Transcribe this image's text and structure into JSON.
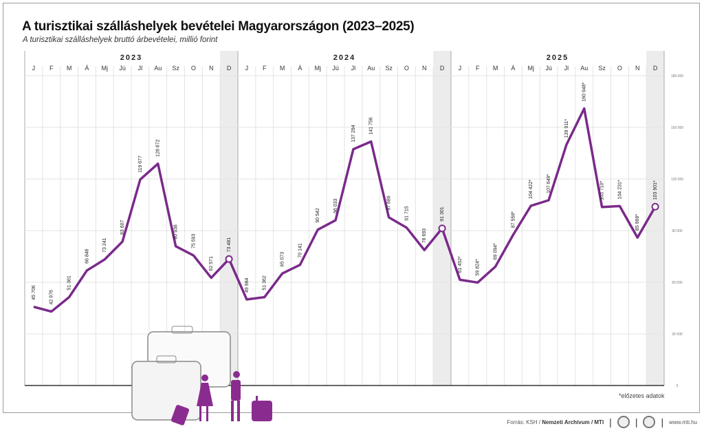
{
  "title": "A turisztikai szálláshelyek bevételei Magyarországon (2023–2025)",
  "subtitle": "A turisztikai szálláshelyek bruttó árbevételei, millió forint",
  "note": "*előzetes adatok",
  "footer": {
    "source_prefix": "Forrás: KSH / ",
    "source_bold": "Nemzeti Archívum / MTI",
    "site": "www.mti.hu"
  },
  "chart_data": {
    "type": "line",
    "title": "A turisztikai szálláshelyek bevételei Magyarországon (2023–2025)",
    "ylabel": "millió forint",
    "ylim": [
      0,
      180000
    ],
    "yticks": [
      0,
      30000,
      60000,
      90000,
      120000,
      150000,
      180000
    ],
    "ytick_labels": [
      "0",
      "30 000",
      "60 000",
      "90 000",
      "120 000",
      "150 000",
      "180 000"
    ],
    "years": [
      "2023",
      "2024",
      "2025"
    ],
    "months": [
      "J",
      "F",
      "M",
      "Á",
      "Mj",
      "Jú",
      "Jl",
      "Au",
      "Sz",
      "O",
      "N",
      "D"
    ],
    "line_color": "#7a2a8a",
    "values": [
      45706,
      42976,
      51361,
      66846,
      73241,
      83607,
      119677,
      128872,
      80938,
      75593,
      62571,
      73481,
      49984,
      51362,
      65073,
      70141,
      90542,
      96033,
      137294,
      141756,
      97689,
      91715,
      78693,
      91301,
      61452,
      59824,
      69094,
      87558,
      104422,
      107649,
      139911,
      160948,
      103710,
      104231,
      85968,
      103901
    ],
    "labels": [
      "45 706",
      "42 976",
      "51 361",
      "66 846",
      "73 241",
      "83 607",
      "119 677",
      "128 872",
      "80 938",
      "75 593",
      "62 571",
      "73 481",
      "49 984",
      "51 362",
      "65 073",
      "70 141",
      "90 542",
      "96 033",
      "137 294",
      "141 756",
      "97 689",
      "91 715",
      "78 693",
      "91 301",
      "61 452*",
      "59 824*",
      "69 094*",
      "87 558*",
      "104 422*",
      "107 649*",
      "139 911*",
      "160 948*",
      "103 710*",
      "104 231*",
      "85 968*",
      "103 901*"
    ]
  }
}
